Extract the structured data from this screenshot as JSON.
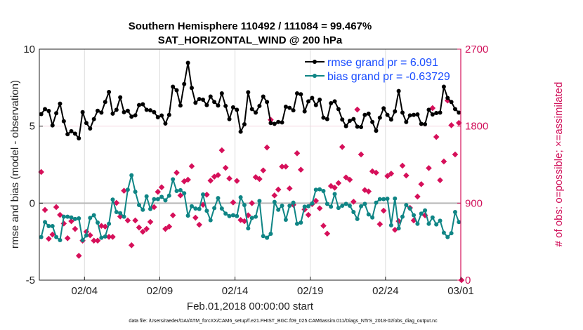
{
  "chart_data": {
    "type": "line",
    "title": [
      "Southern Hemisphere 110492 / 111084 = 99.467%",
      "SAT_HORIZONTAL_WIND @ 200 hPa"
    ],
    "xlabel": "Feb.01,2018 00:00:00 start",
    "ylabel": "rmse and bias (model - observation)",
    "ylabel_right": "# of obs: o=possible; ×=assimilated",
    "footnote": "data file: /Users/raeder/DAI/ATM_forcXX/CAM6_setup/f.e21.FHIST_BGC.f09_025.CAM6assim.011/Diags_NTrS_2018-02/obs_diag_output.nc",
    "xlim_days": [
      0,
      28
    ],
    "x_start_day": 0.125,
    "x_step_day": 0.25,
    "x_ticks": [
      {
        "day": 3,
        "label": "02/04"
      },
      {
        "day": 8,
        "label": "02/09"
      },
      {
        "day": 13,
        "label": "02/14"
      },
      {
        "day": 18,
        "label": "02/19"
      },
      {
        "day": 23,
        "label": "02/24"
      },
      {
        "day": 28,
        "label": "03/01"
      }
    ],
    "ylim": [
      -5,
      10
    ],
    "y_ticks": [
      {
        "v": -5,
        "label": "-5"
      },
      {
        "v": 0,
        "label": "0"
      },
      {
        "v": 5,
        "label": "5"
      },
      {
        "v": 10,
        "label": "10"
      }
    ],
    "ylim_right": [
      0,
      2700
    ],
    "y_ticks_right": [
      {
        "v": 0,
        "label": "0"
      },
      {
        "v": 900,
        "label": "900"
      },
      {
        "v": 1800,
        "label": "1800"
      },
      {
        "v": 2700,
        "label": "2700"
      }
    ],
    "legend_placement": "top-right",
    "colors": {
      "rmse": "#000000",
      "bias": "#0f8585",
      "count": "#d6105a",
      "legend_text": "#1a4dff"
    },
    "series": [
      {
        "name": "rmse grand pr = 6.091",
        "key": "rmse",
        "values": [
          5.78,
          6.11,
          5.99,
          5.05,
          5.84,
          6.46,
          5.32,
          4.48,
          4.67,
          4.51,
          4.21,
          5.91,
          5.2,
          4.85,
          5.46,
          6.0,
          5.88,
          6.57,
          7.22,
          5.81,
          6.06,
          6.87,
          5.91,
          6.0,
          5.62,
          5.7,
          6.37,
          6.42,
          6.06,
          6.03,
          5.91,
          5.58,
          5.69,
          5.17,
          5.73,
          7.56,
          7.33,
          6.34,
          7.74,
          9.11,
          7.48,
          6.52,
          6.76,
          6.72,
          6.37,
          6.92,
          6.57,
          6.34,
          7.13,
          6.31,
          5.46,
          6.22,
          6.06,
          4.64,
          5.12,
          7.2,
          6.11,
          5.88,
          6.31,
          6.92,
          6.57,
          5.2,
          5.15,
          5.27,
          5.24,
          6.26,
          6.19,
          6.03,
          7.13,
          7.07,
          5.96,
          6.61,
          6.83,
          6.37,
          6.72,
          5.55,
          5.46,
          6.49,
          6.61,
          6.11,
          5.43,
          5.0,
          5.35,
          5.46,
          4.97,
          4.94,
          5.73,
          5.81,
          5.27,
          4.7,
          5.55,
          6.16,
          5.73,
          5.43,
          5.96,
          7.28,
          5.88,
          5.27,
          5.7,
          5.73,
          5.76,
          5.15,
          5.12,
          6.06,
          5.76,
          5.85,
          5.88,
          7.56,
          6.83,
          6.57,
          6.11,
          5.88
        ]
      },
      {
        "name": "bias grand pr = -0.63729",
        "key": "bias",
        "values": [
          -2.2,
          -1.23,
          -1.49,
          -1.49,
          -2.2,
          -2.4,
          -0.88,
          -0.88,
          -0.93,
          -1.03,
          -0.99,
          -2.4,
          -2.1,
          -0.96,
          -0.78,
          -1.26,
          -2.25,
          -2.17,
          -1.34,
          0.23,
          -0.58,
          -0.65,
          -0.88,
          0.87,
          1.81,
          0.74,
          -0.12,
          -0.43,
          0.44,
          -0.38,
          0.26,
          0.26,
          0.41,
          0.18,
          0.49,
          1.55,
          0.79,
          0.84,
          0.64,
          -0.81,
          -0.2,
          -0.35,
          -0.38,
          0.56,
          -0.5,
          -1.11,
          -0.32,
          0.33,
          -0.35,
          -0.68,
          -0.84,
          -0.78,
          -0.84,
          0.38,
          -0.12,
          -1.64,
          -0.96,
          -0.88,
          0.14,
          -2.14,
          -2.25,
          -1.99,
          0.08,
          -0.43,
          -0.17,
          -1.08,
          -0.17,
          0.03,
          -1.34,
          -1.26,
          -0.23,
          -0.2,
          -0.02,
          0.87,
          0.9,
          0.79,
          -0.05,
          -0.23,
          0.59,
          -0.31,
          -0.17,
          -0.05,
          -0.17,
          -0.58,
          -1.03,
          -0.2,
          -0.05,
          -0.73,
          -0.93,
          0.03,
          0.26,
          0.26,
          0.29,
          -1.44,
          0.3,
          -1.64,
          -0.88,
          -0.12,
          -0.35,
          -0.78,
          -1.34,
          -0.68,
          -0.47,
          -1.34,
          -0.93,
          -1.38,
          -1.14,
          -1.92,
          -2.2,
          -1.95,
          -0.58,
          -1.23
        ]
      },
      {
        "name": "# of obs",
        "key": "count",
        "axis": "right",
        "values": [
          1264,
          821,
          484,
          533,
          854,
          763,
          662,
          490,
          689,
          599,
          285,
          462,
          566,
          525,
          462,
          462,
          634,
          626,
          506,
          506,
          903,
          744,
          1045,
          698,
          408,
          698,
          615,
          566,
          599,
          681,
          854,
          1032,
          1086,
          599,
          626,
          758,
          1256,
          990,
          1155,
          1174,
          1332,
          730,
          648,
          881,
          999,
          1163,
          1209,
          1228,
          1518,
          1313,
          1188,
          908,
          1160,
          703,
          689,
          758,
          900,
          1204,
          1182,
          1283,
          1551,
          1874,
          990,
          1059,
          1327,
          1327,
          1072,
          881,
          1483,
          1291,
          826,
          763,
          889,
          927,
          840,
          635,
          544,
          1100,
          1081,
          1135,
          1557,
          1201,
          1174,
          917,
          1994,
          1469,
          1053,
          1037,
          1272,
          1256,
          654,
          812,
          1217,
          1245,
          588,
          689,
          1338,
          1223,
          845,
          698,
          977,
          1122,
          758,
          1310,
          2011,
          1674,
          1168,
          1387,
          2099,
          1811,
          1469,
          1838,
          0
        ]
      }
    ]
  }
}
